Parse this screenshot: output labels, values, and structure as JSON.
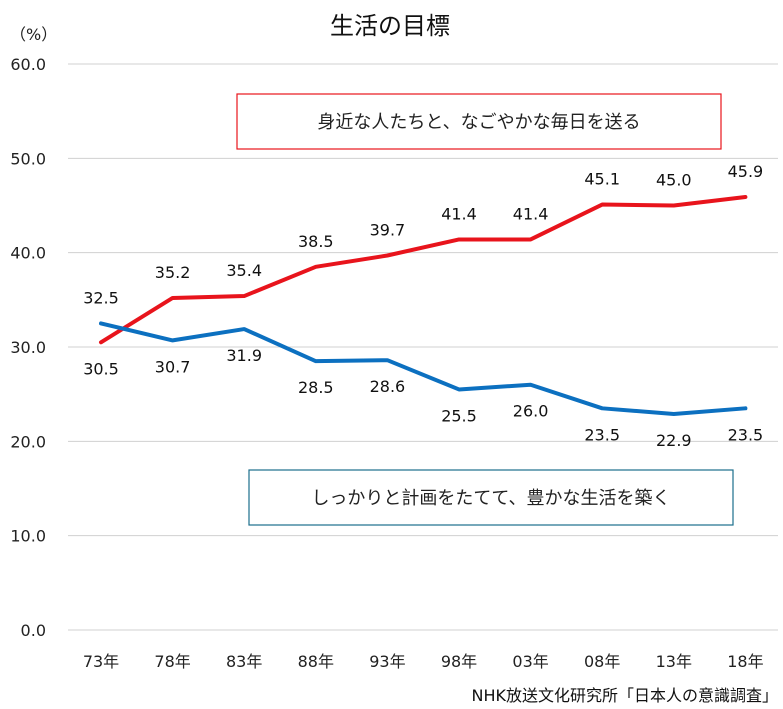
{
  "chart_data": {
    "type": "line",
    "title": "生活の目標",
    "unit_label": "（%）",
    "source": "NHK放送文化研究所「日本人の意識調査」",
    "categories": [
      "73年",
      "78年",
      "83年",
      "88年",
      "93年",
      "98年",
      "03年",
      "08年",
      "13年",
      "18年"
    ],
    "ylim": [
      0,
      60
    ],
    "yticks": [
      "0.0",
      "10.0",
      "20.0",
      "30.0",
      "40.0",
      "50.0",
      "60.0"
    ],
    "grid": true,
    "series": [
      {
        "name": "身近な人たちと、なごやかな毎日を送る",
        "color": "#e8141c",
        "values": [
          30.5,
          35.2,
          35.4,
          38.5,
          39.7,
          41.4,
          41.4,
          45.1,
          45.0,
          45.9
        ],
        "labels": [
          "30.5",
          "35.2",
          "35.4",
          "38.5",
          "39.7",
          "41.4",
          "41.4",
          "45.1",
          "45.0",
          "45.9"
        ]
      },
      {
        "name": "しっかりと計画をたてて、豊かな生活を築く",
        "color": "#0c70c0",
        "values": [
          32.5,
          30.7,
          31.9,
          28.5,
          28.6,
          25.5,
          26.0,
          23.5,
          22.9,
          23.5
        ],
        "labels": [
          "32.5",
          "30.7",
          "31.9",
          "28.5",
          "28.6",
          "25.5",
          "26.0",
          "23.5",
          "22.9",
          "23.5"
        ]
      }
    ]
  }
}
